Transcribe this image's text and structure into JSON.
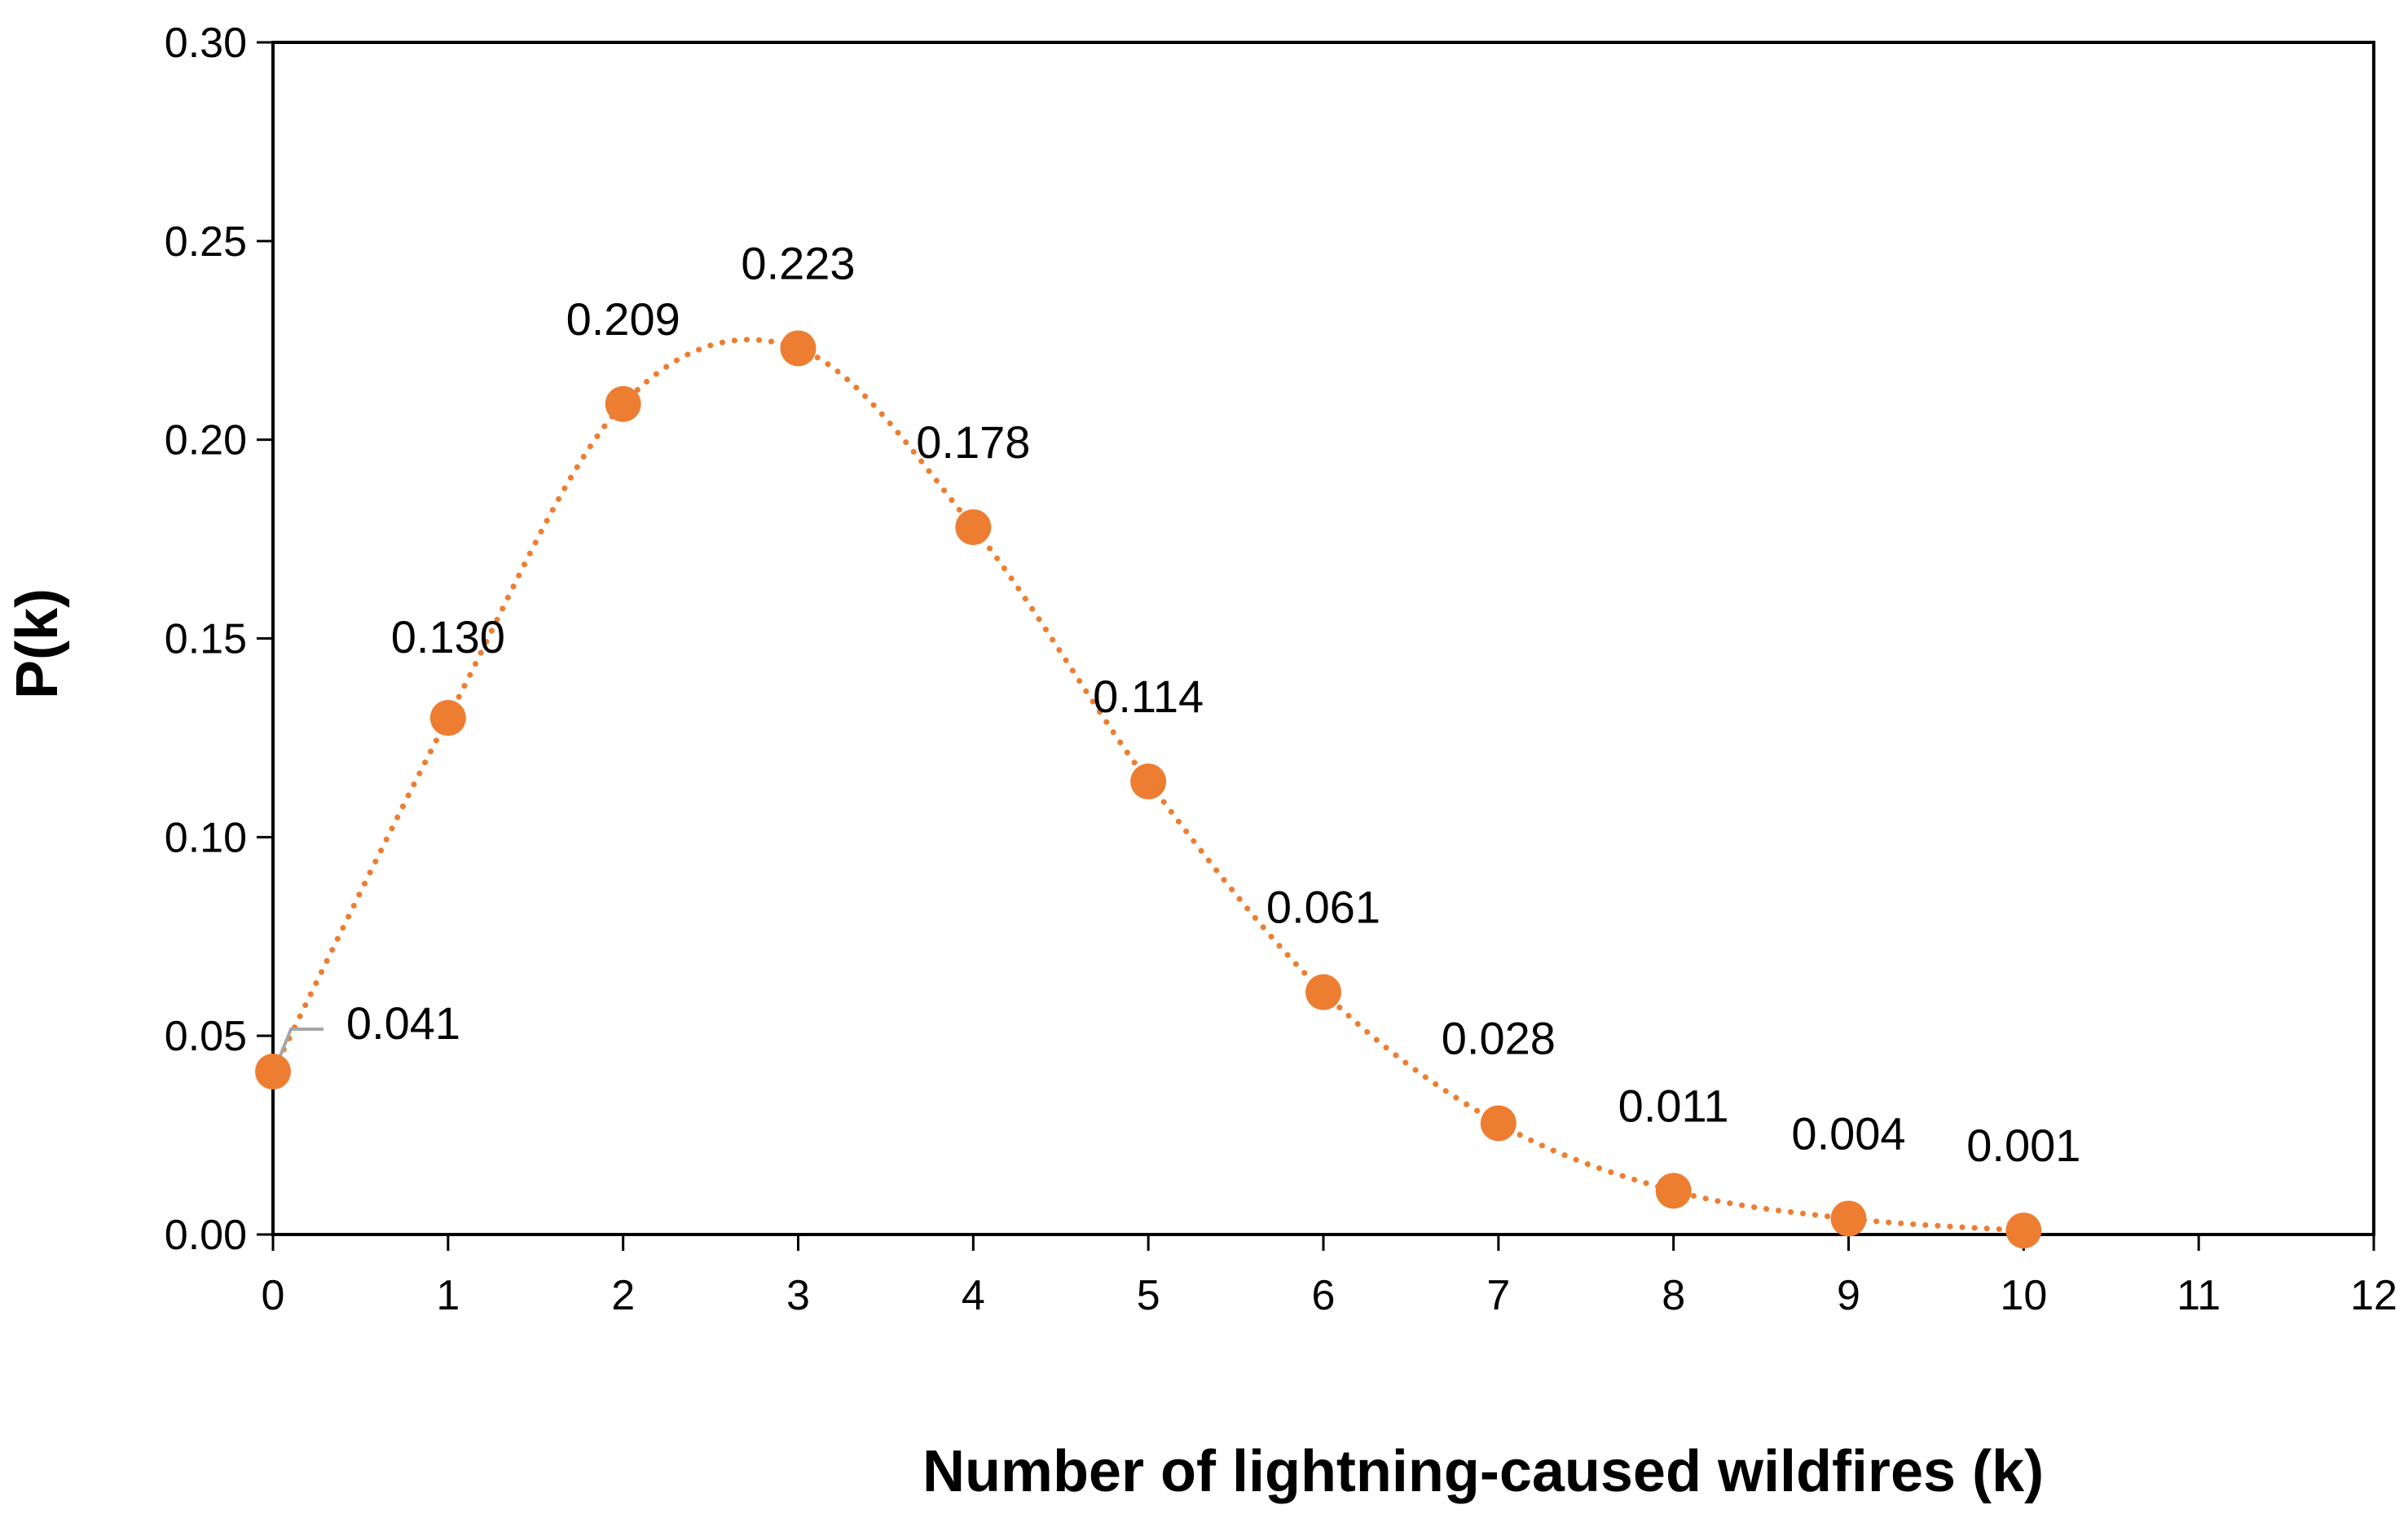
{
  "chart_data": {
    "type": "scatter",
    "title": "",
    "xlabel": "Number of lightning-caused wildfires (k)",
    "ylabel": "P(k)",
    "xlim": [
      0,
      12
    ],
    "ylim": [
      0,
      0.3
    ],
    "x_ticks": [
      "0",
      "1",
      "2",
      "3",
      "4",
      "5",
      "6",
      "7",
      "8",
      "9",
      "10",
      "11",
      "12"
    ],
    "y_ticks": [
      "0.00",
      "0.05",
      "0.10",
      "0.15",
      "0.20",
      "0.25",
      "0.30"
    ],
    "series": [
      {
        "name": "P(k)",
        "color": "#ED7D31",
        "x": [
          0,
          1,
          2,
          3,
          4,
          5,
          6,
          7,
          8,
          9,
          10
        ],
        "values": [
          0.041,
          0.13,
          0.209,
          0.223,
          0.178,
          0.114,
          0.061,
          0.028,
          0.011,
          0.004,
          0.001
        ],
        "labels": [
          "0.041",
          "0.130",
          "0.209",
          "0.223",
          "0.178",
          "0.114",
          "0.061",
          "0.028",
          "0.011",
          "0.004",
          "0.001"
        ],
        "trendline": "smooth dotted"
      }
    ],
    "grid": false,
    "legend": "none"
  }
}
